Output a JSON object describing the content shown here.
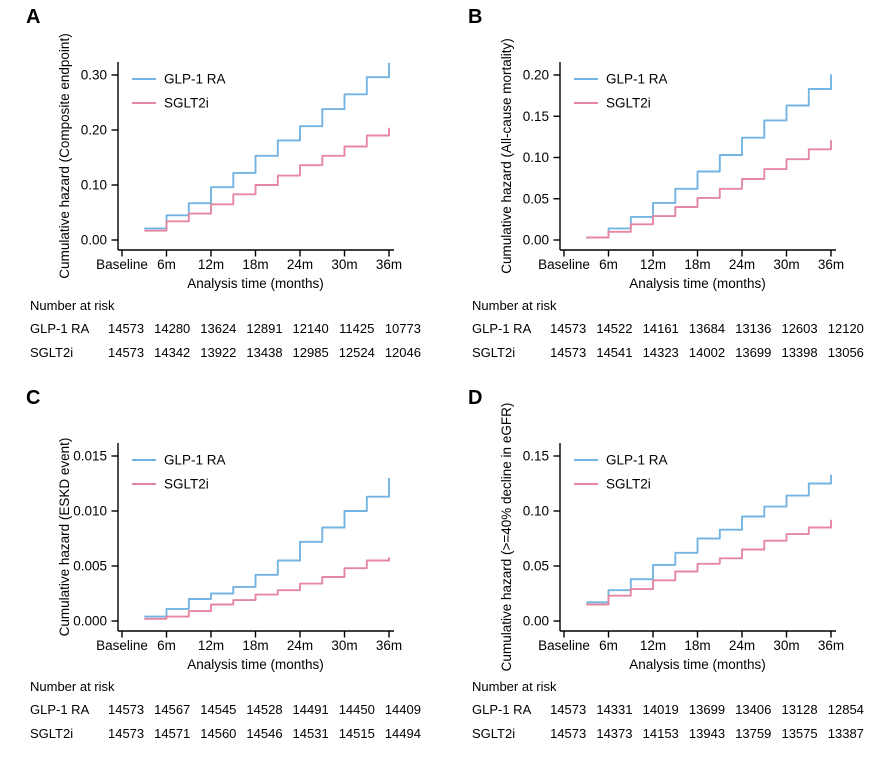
{
  "figure": {
    "background": "#ffffff",
    "axis_color": "#000000",
    "colors": {
      "glp1ra": "#74B4E2",
      "sglt2i": "#E587A2"
    }
  },
  "chart_data": [
    {
      "type": "line",
      "panel_label": "A",
      "ylabel": "Cumulative hazard (Composite endpoint)",
      "xlabel": "Analysis time (months)",
      "x_ticks": [
        "Baseline",
        "6m",
        "12m",
        "18m",
        "24m",
        "30m",
        "36m"
      ],
      "x_tick_months": [
        0,
        6,
        12,
        18,
        24,
        30,
        36
      ],
      "xlim": [
        0,
        36
      ],
      "ylim": [
        0,
        0.335
      ],
      "y_ticks": [
        0.0,
        0.1,
        0.2,
        0.3
      ],
      "y_tick_labels": [
        "0.00",
        "0.10",
        "0.20",
        "0.30"
      ],
      "legend_position": "top-left-inside",
      "grid": false,
      "step_months": [
        3,
        6,
        9,
        12,
        15,
        18,
        21,
        24,
        27,
        30,
        33,
        36
      ],
      "series": [
        {
          "name": "GLP-1 RA",
          "color": "#74B4E2",
          "values": [
            0.021,
            0.045,
            0.067,
            0.096,
            0.122,
            0.153,
            0.181,
            0.207,
            0.238,
            0.265,
            0.296,
            0.322
          ]
        },
        {
          "name": "SGLT2i",
          "color": "#E587A2",
          "values": [
            0.017,
            0.034,
            0.048,
            0.065,
            0.083,
            0.1,
            0.117,
            0.136,
            0.153,
            0.17,
            0.19,
            0.204
          ]
        }
      ],
      "risk_table": {
        "title": "Number at risk",
        "rows": [
          {
            "label": "GLP-1 RA",
            "values": [
              "14573",
              "14280",
              "13624",
              "12891",
              "12140",
              "11425",
              "10773"
            ]
          },
          {
            "label": "SGLT2i",
            "values": [
              "14573",
              "14342",
              "13922",
              "13438",
              "12985",
              "12524",
              "12046"
            ]
          }
        ]
      }
    },
    {
      "type": "line",
      "panel_label": "B",
      "ylabel": "Cumulative hazard (All-cause mortality)",
      "xlabel": "Analysis time (months)",
      "x_ticks": [
        "Baseline",
        "6m",
        "12m",
        "18m",
        "24m",
        "30m",
        "36m"
      ],
      "x_tick_months": [
        0,
        6,
        12,
        18,
        24,
        30,
        36
      ],
      "xlim": [
        0,
        36
      ],
      "ylim": [
        0,
        0.21
      ],
      "y_ticks": [
        0.0,
        0.05,
        0.1,
        0.15,
        0.2
      ],
      "y_tick_labels": [
        "0.00",
        "0.05",
        "0.10",
        "0.15",
        "0.20"
      ],
      "legend_position": "top-left-inside",
      "grid": false,
      "step_months": [
        3,
        6,
        9,
        12,
        15,
        18,
        21,
        24,
        27,
        30,
        33,
        36
      ],
      "series": [
        {
          "name": "GLP-1 RA",
          "color": "#74B4E2",
          "values": [
            0.003,
            0.014,
            0.028,
            0.045,
            0.062,
            0.083,
            0.103,
            0.124,
            0.145,
            0.163,
            0.183,
            0.201
          ]
        },
        {
          "name": "SGLT2i",
          "color": "#E587A2",
          "values": [
            0.003,
            0.01,
            0.019,
            0.029,
            0.04,
            0.051,
            0.062,
            0.074,
            0.086,
            0.098,
            0.11,
            0.121
          ]
        }
      ],
      "risk_table": {
        "title": "Number at risk",
        "rows": [
          {
            "label": "GLP-1 RA",
            "values": [
              "14573",
              "14522",
              "14161",
              "13684",
              "13136",
              "12603",
              "12120"
            ]
          },
          {
            "label": "SGLT2i",
            "values": [
              "14573",
              "14541",
              "14323",
              "14002",
              "13699",
              "13398",
              "13056"
            ]
          }
        ]
      }
    },
    {
      "type": "line",
      "panel_label": "C",
      "ylabel": "Cumulative hazard (ESKD event)",
      "xlabel": "Analysis time (months)",
      "x_ticks": [
        "Baseline",
        "6m",
        "12m",
        "18m",
        "24m",
        "30m",
        "36m"
      ],
      "x_tick_months": [
        0,
        6,
        12,
        18,
        24,
        30,
        36
      ],
      "xlim": [
        0,
        36
      ],
      "ylim": [
        0,
        0.0157
      ],
      "y_ticks": [
        0.0,
        0.005,
        0.01,
        0.015
      ],
      "y_tick_labels": [
        "0.000",
        "0.005",
        "0.010",
        "0.015"
      ],
      "legend_position": "top-left-inside",
      "grid": false,
      "step_months": [
        3,
        6,
        9,
        12,
        15,
        18,
        21,
        24,
        27,
        30,
        33,
        36
      ],
      "series": [
        {
          "name": "GLP-1 RA",
          "color": "#74B4E2",
          "values": [
            0.0004,
            0.0011,
            0.002,
            0.0025,
            0.0031,
            0.0042,
            0.0055,
            0.0072,
            0.0085,
            0.01,
            0.0113,
            0.013
          ]
        },
        {
          "name": "SGLT2i",
          "color": "#E587A2",
          "values": [
            0.0002,
            0.0004,
            0.0009,
            0.0015,
            0.0019,
            0.0024,
            0.0028,
            0.0034,
            0.004,
            0.0048,
            0.0055,
            0.0058
          ]
        }
      ],
      "risk_table": {
        "title": "Number at risk",
        "rows": [
          {
            "label": "GLP-1 RA",
            "values": [
              "14573",
              "14567",
              "14545",
              "14528",
              "14491",
              "14450",
              "14409"
            ]
          },
          {
            "label": "SGLT2i",
            "values": [
              "14573",
              "14571",
              "14560",
              "14546",
              "14531",
              "14515",
              "14494"
            ]
          }
        ]
      }
    },
    {
      "type": "line",
      "panel_label": "D",
      "ylabel": "Cumulative hazard (>=40% decline in eGFR)",
      "xlabel": "Analysis time (months)",
      "x_ticks": [
        "Baseline",
        "6m",
        "12m",
        "18m",
        "24m",
        "30m",
        "36m"
      ],
      "x_tick_months": [
        0,
        6,
        12,
        18,
        24,
        30,
        36
      ],
      "xlim": [
        0,
        36
      ],
      "ylim": [
        0,
        0.157
      ],
      "y_ticks": [
        0.0,
        0.05,
        0.1,
        0.15
      ],
      "y_tick_labels": [
        "0.00",
        "0.05",
        "0.10",
        "0.15"
      ],
      "legend_position": "top-left-inside",
      "grid": false,
      "step_months": [
        3,
        6,
        9,
        12,
        15,
        18,
        21,
        24,
        27,
        30,
        33,
        36
      ],
      "series": [
        {
          "name": "GLP-1 RA",
          "color": "#74B4E2",
          "values": [
            0.017,
            0.028,
            0.038,
            0.051,
            0.062,
            0.075,
            0.083,
            0.095,
            0.104,
            0.114,
            0.125,
            0.133
          ]
        },
        {
          "name": "SGLT2i",
          "color": "#E587A2",
          "values": [
            0.015,
            0.023,
            0.029,
            0.037,
            0.045,
            0.052,
            0.057,
            0.065,
            0.073,
            0.079,
            0.085,
            0.092
          ]
        }
      ],
      "risk_table": {
        "title": "Number at risk",
        "rows": [
          {
            "label": "GLP-1 RA",
            "values": [
              "14573",
              "14331",
              "14019",
              "13699",
              "13406",
              "13128",
              "12854"
            ]
          },
          {
            "label": "SGLT2i",
            "values": [
              "14573",
              "14373",
              "14153",
              "13943",
              "13759",
              "13575",
              "13387"
            ]
          }
        ]
      }
    }
  ]
}
